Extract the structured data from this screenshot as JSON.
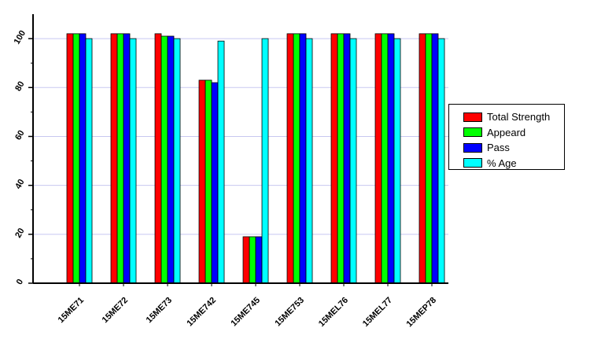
{
  "chart_data": {
    "type": "bar",
    "categories": [
      "15ME71",
      "15ME72",
      "15ME73",
      "15ME742",
      "15ME745",
      "15ME753",
      "15MEL76",
      "15MEL77",
      "15MEP78"
    ],
    "series": [
      {
        "name": "Total Strength",
        "color": "#ff0000",
        "values": [
          102,
          102,
          102,
          83,
          19,
          102,
          102,
          102,
          102
        ]
      },
      {
        "name": "Appeard",
        "color": "#00ff00",
        "values": [
          102,
          102,
          101,
          83,
          19,
          102,
          102,
          102,
          102
        ]
      },
      {
        "name": "Pass",
        "color": "#0000ff",
        "values": [
          102,
          102,
          101,
          82,
          19,
          102,
          102,
          102,
          102
        ]
      },
      {
        "name": "% Age",
        "color": "#00ffff",
        "values": [
          100,
          100,
          100,
          99,
          100,
          100,
          100,
          100,
          100
        ]
      }
    ],
    "title": "",
    "xlabel": "",
    "ylabel": "",
    "ylim": [
      0,
      110
    ],
    "yticks": [
      0,
      20,
      40,
      60,
      80,
      100
    ],
    "grid": true,
    "legend_position": "right"
  }
}
